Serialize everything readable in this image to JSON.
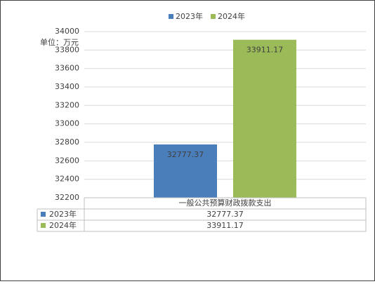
{
  "chart_data": {
    "type": "bar",
    "unit_label": "单位：万元",
    "categories": [
      "一般公共预算财政拨款支出"
    ],
    "series": [
      {
        "name": "2023年",
        "color": "#4a7ebb",
        "values": [
          32777.37
        ]
      },
      {
        "name": "2024年",
        "color": "#9bbb59",
        "values": [
          33911.17
        ]
      }
    ],
    "ylim": [
      32200,
      34000
    ],
    "yticks": [
      32200,
      32400,
      32600,
      32800,
      33000,
      33200,
      33400,
      33600,
      33800,
      34000
    ],
    "grid": true,
    "legend": "top"
  }
}
